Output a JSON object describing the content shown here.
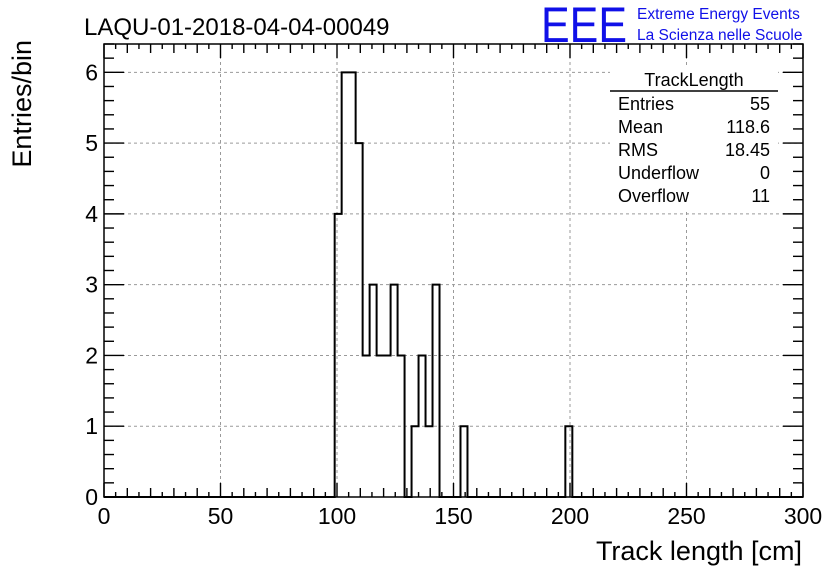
{
  "header": {
    "run_id": "LAQU-01-2018-04-04-00049",
    "logo_text": "EEE",
    "logo_line1": "Extreme Energy Events",
    "logo_line2": "La Scienza nelle Scuole",
    "logo_color": "#1010e8"
  },
  "stats_box": {
    "title": "TrackLength",
    "rows": [
      {
        "label": "Entries",
        "value": "55"
      },
      {
        "label": "Mean",
        "value": "118.6"
      },
      {
        "label": "RMS",
        "value": "18.45"
      },
      {
        "label": "Underflow",
        "value": "0"
      },
      {
        "label": "Overflow",
        "value": "11"
      }
    ]
  },
  "chart_data": {
    "type": "bar",
    "subtype": "step-histogram",
    "title": "LAQU-01-2018-04-04-00049",
    "xlabel": "Track length [cm]",
    "ylabel": "Entries/bin",
    "xlim": [
      0,
      300
    ],
    "ylim": [
      0,
      6.4
    ],
    "bin_width": 3,
    "xticks": [
      0,
      50,
      100,
      150,
      200,
      250,
      300
    ],
    "yticks": [
      0,
      1,
      2,
      3,
      4,
      5,
      6
    ],
    "grid": true,
    "legend": "none",
    "line_color": "#000000",
    "bins": [
      {
        "x0": 99,
        "x1": 102,
        "count": 4
      },
      {
        "x0": 102,
        "x1": 105,
        "count": 6
      },
      {
        "x0": 105,
        "x1": 108,
        "count": 6
      },
      {
        "x0": 108,
        "x1": 111,
        "count": 5
      },
      {
        "x0": 111,
        "x1": 114,
        "count": 2
      },
      {
        "x0": 114,
        "x1": 117,
        "count": 3
      },
      {
        "x0": 117,
        "x1": 120,
        "count": 2
      },
      {
        "x0": 120,
        "x1": 123,
        "count": 2
      },
      {
        "x0": 123,
        "x1": 126,
        "count": 3
      },
      {
        "x0": 126,
        "x1": 129,
        "count": 2
      },
      {
        "x0": 129,
        "x1": 132,
        "count": 0
      },
      {
        "x0": 132,
        "x1": 135,
        "count": 1
      },
      {
        "x0": 135,
        "x1": 138,
        "count": 2
      },
      {
        "x0": 138,
        "x1": 141,
        "count": 1
      },
      {
        "x0": 141,
        "x1": 144,
        "count": 3
      },
      {
        "x0": 144,
        "x1": 147,
        "count": 0
      },
      {
        "x0": 147,
        "x1": 150,
        "count": 0
      },
      {
        "x0": 150,
        "x1": 153,
        "count": 0
      },
      {
        "x0": 153,
        "x1": 156,
        "count": 1
      },
      {
        "x0": 156,
        "x1": 198,
        "count": 0
      },
      {
        "x0": 198,
        "x1": 201,
        "count": 1
      }
    ]
  }
}
